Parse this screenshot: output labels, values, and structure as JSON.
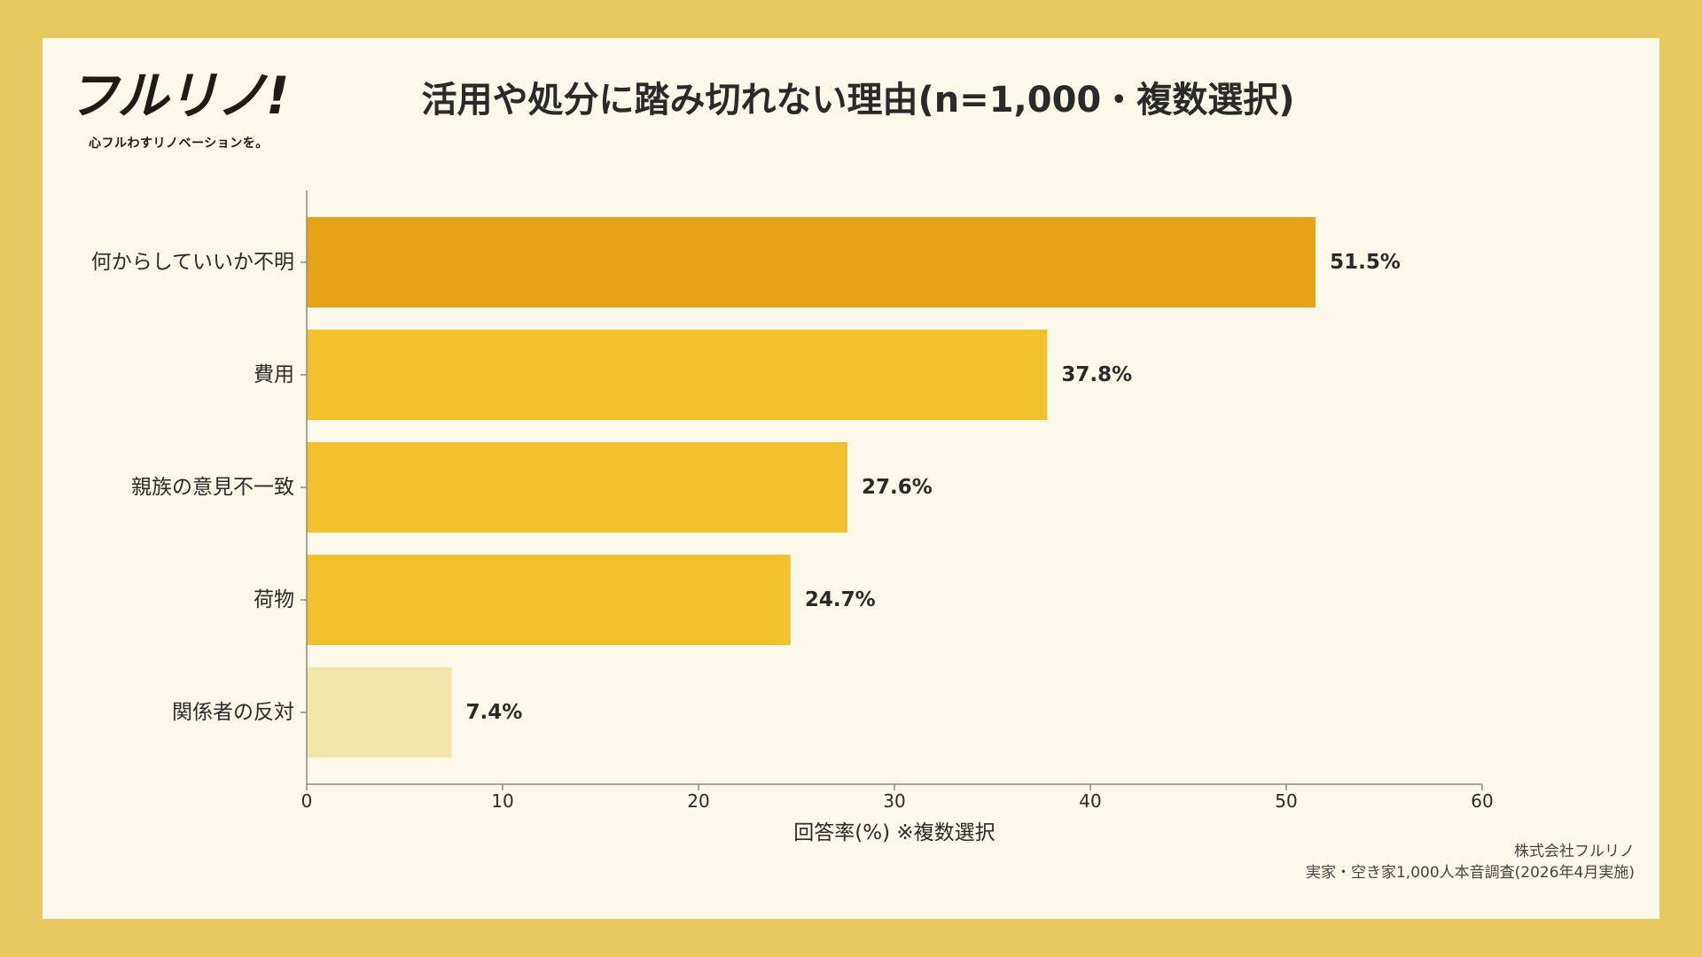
{
  "brand": {
    "logo_text": "フルリノ!",
    "tagline": "心フルわすリノベーションを。"
  },
  "colors": {
    "frame": "#e8c95f",
    "card": "#fcf8ea",
    "bar_highlight": "#e6a317",
    "bar_default": "#f2c12e",
    "bar_light": "#f2e6ab",
    "axis": "#8a8a8a",
    "text": "#2a2a2a"
  },
  "chart_data": {
    "type": "bar",
    "orientation": "horizontal",
    "title": "活用や処分に踏み切れない理由(n=1,000・複数選択)",
    "categories": [
      "何からしていいか不明",
      "費用",
      "親族の意見不一致",
      "荷物",
      "関係者の反対"
    ],
    "values": [
      51.5,
      37.8,
      27.6,
      24.7,
      7.4
    ],
    "value_labels": [
      "51.5%",
      "37.8%",
      "27.6%",
      "24.7%",
      "7.4%"
    ],
    "xlabel": "回答率(%) ※複数選択",
    "ylabel": "",
    "xlim": [
      0,
      60
    ],
    "xticks": [
      0,
      10,
      20,
      30,
      40,
      50,
      60
    ],
    "grid": false,
    "legend": "none"
  },
  "source": {
    "line1": "株式会社フルリノ",
    "line2": "実家・空き家1,000人本音調査(2026年4月実施)"
  }
}
